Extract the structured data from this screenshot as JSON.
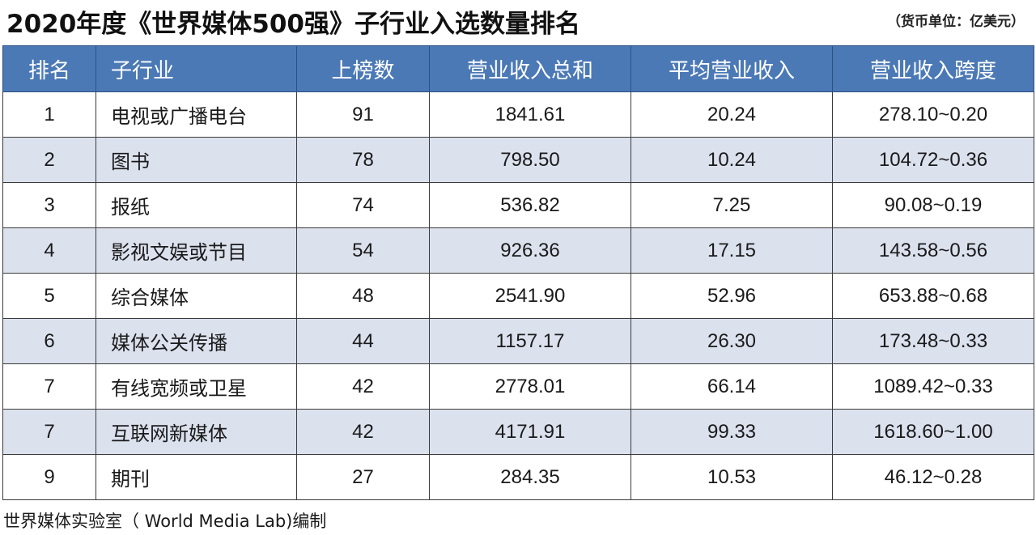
{
  "title": "2020年度《世界媒体500强》子行业入选数量排名",
  "unit_note": "（货币单位：亿美元）",
  "source": "世界媒体实验室（ World Media Lab)编制",
  "colors": {
    "header_bg": "#4b79b6",
    "stripe_bg": "#dce1ee"
  },
  "chart_data": {
    "type": "table",
    "columns": [
      "排名",
      "子行业",
      "上榜数",
      "营业收入总和",
      "平均营业收入",
      "营业收入跨度"
    ],
    "rows": [
      [
        "1",
        "电视或广播电台",
        "91",
        "1841.61",
        "20.24",
        "278.10~0.20"
      ],
      [
        "2",
        "图书",
        "78",
        "798.50",
        "10.24",
        "104.72~0.36"
      ],
      [
        "3",
        "报纸",
        "74",
        "536.82",
        "7.25",
        "90.08~0.19"
      ],
      [
        "4",
        "影视文娱或节目",
        "54",
        "926.36",
        "17.15",
        "143.58~0.56"
      ],
      [
        "5",
        "综合媒体",
        "48",
        "2541.90",
        "52.96",
        "653.88~0.68"
      ],
      [
        "6",
        "媒体公关传播",
        "44",
        "1157.17",
        "26.30",
        "173.48~0.33"
      ],
      [
        "7",
        "有线宽频或卫星",
        "42",
        "2778.01",
        "66.14",
        "1089.42~0.33"
      ],
      [
        "7",
        "互联网新媒体",
        "42",
        "4171.91",
        "99.33",
        "1618.60~1.00"
      ],
      [
        "9",
        "期刊",
        "27",
        "284.35",
        "10.53",
        "46.12~0.28"
      ]
    ]
  }
}
